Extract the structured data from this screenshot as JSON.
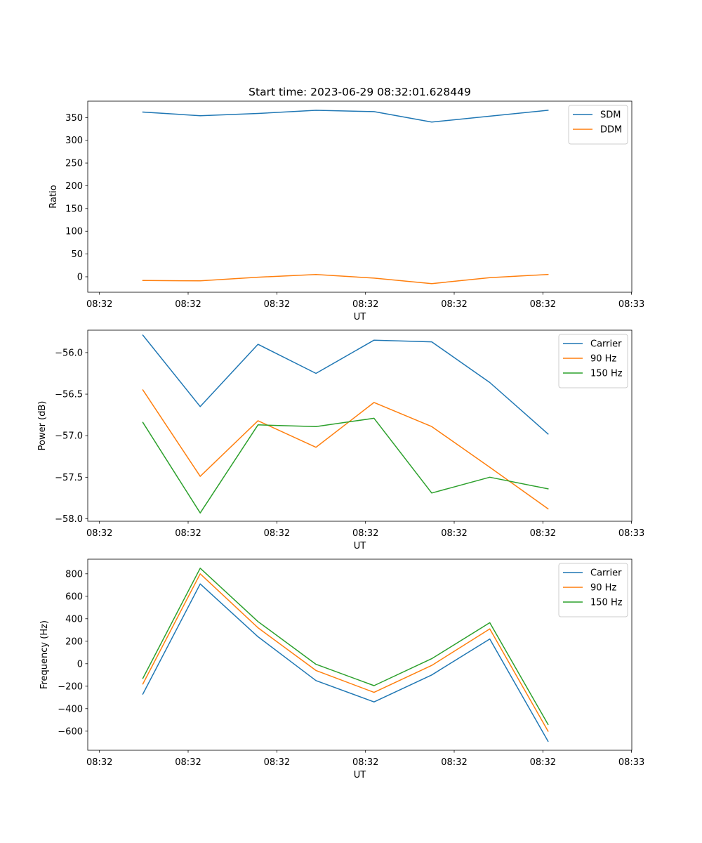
{
  "figure": {
    "title": "Start time: 2023-06-29 08:32:01.628449"
  },
  "chart_data": [
    {
      "type": "line",
      "ylabel": "Ratio",
      "xlabel": "UT",
      "x_tick_labels": [
        "08:32",
        "08:32",
        "08:32",
        "08:32",
        "08:32",
        "08:32",
        "08:33"
      ],
      "y_ticks": [
        0,
        50,
        100,
        150,
        200,
        250,
        300,
        350
      ],
      "ylim": [
        -34,
        386
      ],
      "legend_placement": "upper right",
      "grid": false,
      "series": [
        {
          "name": "SDM",
          "color": "#1f77b4",
          "values": [
            362,
            354,
            359,
            366,
            363,
            340,
            353,
            366
          ]
        },
        {
          "name": "DDM",
          "color": "#ff7f0e",
          "values": [
            -8,
            -9,
            -1,
            5,
            -3,
            -15,
            -2,
            5
          ]
        }
      ]
    },
    {
      "type": "line",
      "ylabel": "Power (dB)",
      "xlabel": "UT",
      "x_tick_labels": [
        "08:32",
        "08:32",
        "08:32",
        "08:32",
        "08:32",
        "08:32",
        "08:33"
      ],
      "y_ticks": [
        -58.0,
        -57.5,
        -57.0,
        -56.5,
        -56.0
      ],
      "y_tick_labels": [
        "−58.0",
        "−57.5",
        "−57.0",
        "−56.5",
        "−56.0"
      ],
      "ylim": [
        -58.03,
        -55.73
      ],
      "legend_placement": "upper right",
      "grid": false,
      "series": [
        {
          "name": "Carrier",
          "color": "#1f77b4",
          "values": [
            -55.79,
            -56.65,
            -55.9,
            -56.25,
            -55.85,
            -55.87,
            -56.36,
            -56.98
          ]
        },
        {
          "name": "90 Hz",
          "color": "#ff7f0e",
          "values": [
            -56.45,
            -57.49,
            -56.82,
            -57.14,
            -56.6,
            -56.89,
            -57.38,
            -57.88
          ]
        },
        {
          "name": "150 Hz",
          "color": "#2ca02c",
          "values": [
            -56.84,
            -57.93,
            -56.87,
            -56.89,
            -56.79,
            -57.69,
            -57.5,
            -57.64
          ]
        }
      ]
    },
    {
      "type": "line",
      "ylabel": "Frequency (Hz)",
      "xlabel": "UT",
      "x_tick_labels": [
        "08:32",
        "08:32",
        "08:32",
        "08:32",
        "08:32",
        "08:32",
        "08:33"
      ],
      "y_ticks": [
        -600,
        -400,
        -200,
        0,
        200,
        400,
        600,
        800
      ],
      "y_tick_labels": [
        "−600",
        "−400",
        "−200",
        "0",
        "200",
        "400",
        "600",
        "800"
      ],
      "ylim": [
        -770,
        930
      ],
      "legend_placement": "upper right",
      "grid": false,
      "series": [
        {
          "name": "Carrier",
          "color": "#1f77b4",
          "values": [
            -270,
            710,
            240,
            -150,
            -340,
            -100,
            220,
            -690
          ]
        },
        {
          "name": "90 Hz",
          "color": "#ff7f0e",
          "values": [
            -180,
            800,
            320,
            -60,
            -255,
            -15,
            310,
            -600
          ]
        },
        {
          "name": "150 Hz",
          "color": "#2ca02c",
          "values": [
            -130,
            850,
            375,
            -5,
            -195,
            45,
            365,
            -540
          ]
        }
      ]
    }
  ]
}
